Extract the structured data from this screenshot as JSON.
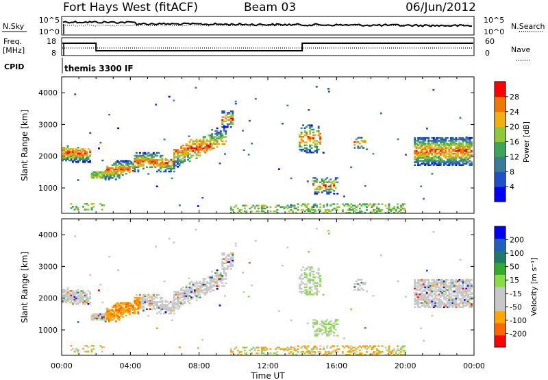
{
  "header": {
    "radar": "Fort Hays West (fitACF)",
    "beam": "Beam 03",
    "date": "06/Jun/2012"
  },
  "status_panels": {
    "nsky_label": "N.Sky",
    "nsky_ticks": [
      "10^5",
      "10^0"
    ],
    "nsearch_label": "N.Search",
    "nsearch_ticks": [
      "10^5",
      "10^0"
    ],
    "freq_label_1": "Freq.",
    "freq_label_2": "[MHz]",
    "freq_ticks": [
      "18",
      "8"
    ],
    "nave_label": "Nave",
    "nave_ticks": [
      "60",
      "0"
    ],
    "cpid_label": "CPID",
    "cpid_value": "themis 3300 IF"
  },
  "colors": {
    "power_scale": [
      "#0000ff",
      "#1e50c8",
      "#3a7a9a",
      "#3da45a",
      "#8fc93a",
      "#f0b010",
      "#f07800",
      "#ff0000"
    ],
    "velocity_scale": [
      "#ff0000",
      "#ff6600",
      "#ffa500",
      "#c8c8c8",
      "#c8c8c8",
      "#88dd44",
      "#33aa33",
      "#1f7a6a",
      "#2060c0",
      "#0000ff"
    ],
    "ground_scatter": "#c8c8c8"
  },
  "chart_data": [
    {
      "type": "heatmap",
      "quantity": "Power",
      "ylabel": "Slant Range [km]",
      "yticks": [
        "1000",
        "2000",
        "3000",
        "4000"
      ],
      "ylim": [
        200,
        4500
      ],
      "xlim": [
        "00:00",
        "24:00"
      ],
      "colorbar_label": "Power [dB]",
      "colorbar_ticks": [
        "4",
        "8",
        "12",
        "16",
        "20",
        "24",
        "28"
      ],
      "colorbar_range": [
        0,
        32
      ]
    },
    {
      "type": "heatmap",
      "quantity": "Velocity",
      "ylabel": "Slant Range [km]",
      "yticks": [
        "1000",
        "2000",
        "3000",
        "4000"
      ],
      "ylim": [
        200,
        4500
      ],
      "xlim": [
        "00:00",
        "24:00"
      ],
      "xlabel": "Time UT",
      "xticks": [
        "00:00",
        "04:00",
        "08:00",
        "12:00",
        "16:00",
        "20:00",
        "00:00"
      ],
      "colorbar_label": "Velocity [m s⁻¹]",
      "colorbar_ticks": [
        "200",
        "100",
        "50",
        "15",
        "-15",
        "-50",
        "-100",
        "-200"
      ],
      "colorbar_range": [
        -250,
        250
      ]
    }
  ]
}
